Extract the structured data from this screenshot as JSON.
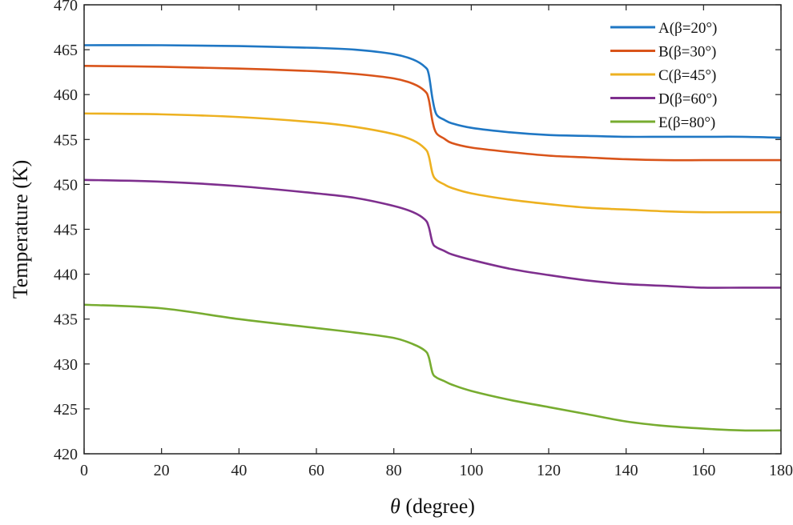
{
  "chart_data": {
    "type": "line",
    "xlabel_var": "θ",
    "xlabel_rest": " (degree)",
    "ylabel": "Temperature (K)",
    "xlim": [
      0,
      180
    ],
    "ylim": [
      420,
      470
    ],
    "xticks": [
      0,
      20,
      40,
      60,
      80,
      100,
      120,
      140,
      160,
      180
    ],
    "yticks": [
      420,
      425,
      430,
      435,
      440,
      445,
      450,
      455,
      460,
      465,
      470
    ],
    "grid": false,
    "legend_position": "top-right",
    "series": [
      {
        "name": "A(β=20°)",
        "color": "#1f77c4",
        "x": [
          0,
          20,
          40,
          60,
          70,
          80,
          85,
          88,
          89,
          90,
          91,
          93,
          95,
          100,
          110,
          120,
          130,
          140,
          150,
          160,
          170,
          180
        ],
        "y": [
          465.5,
          465.5,
          465.4,
          465.2,
          465.0,
          464.5,
          463.9,
          463.1,
          462.3,
          459.5,
          457.8,
          457.2,
          456.8,
          456.3,
          455.8,
          455.5,
          455.4,
          455.3,
          455.3,
          455.3,
          455.3,
          455.2
        ]
      },
      {
        "name": "B(β=30°)",
        "color": "#d9541a",
        "x": [
          0,
          20,
          40,
          60,
          70,
          80,
          85,
          88,
          89,
          90,
          91,
          93,
          95,
          100,
          110,
          120,
          130,
          140,
          150,
          160,
          170,
          180
        ],
        "y": [
          463.2,
          463.1,
          462.9,
          462.6,
          462.3,
          461.8,
          461.2,
          460.4,
          459.5,
          457.0,
          455.7,
          455.1,
          454.6,
          454.1,
          453.6,
          453.2,
          453.0,
          452.8,
          452.7,
          452.7,
          452.7,
          452.7
        ]
      },
      {
        "name": "C(β=45°)",
        "color": "#edb120",
        "x": [
          0,
          20,
          40,
          60,
          70,
          80,
          85,
          88,
          89,
          90,
          91,
          93,
          95,
          100,
          110,
          120,
          130,
          140,
          150,
          160,
          170,
          180
        ],
        "y": [
          457.9,
          457.8,
          457.5,
          456.9,
          456.4,
          455.6,
          454.9,
          454.0,
          453.2,
          451.2,
          450.5,
          450.0,
          449.6,
          449.0,
          448.3,
          447.8,
          447.4,
          447.2,
          447.0,
          446.9,
          446.9,
          446.9
        ]
      },
      {
        "name": "D(β=60°)",
        "color": "#7e2f8e",
        "x": [
          0,
          20,
          40,
          60,
          70,
          80,
          85,
          88,
          89,
          90,
          91,
          93,
          95,
          100,
          110,
          120,
          130,
          140,
          150,
          160,
          170,
          180
        ],
        "y": [
          450.5,
          450.3,
          449.8,
          449.0,
          448.5,
          447.6,
          446.9,
          446.1,
          445.3,
          443.5,
          443.0,
          442.6,
          442.2,
          441.6,
          440.6,
          439.9,
          439.3,
          438.9,
          438.7,
          438.5,
          438.5,
          438.5
        ]
      },
      {
        "name": "E(β=80°)",
        "color": "#77ac30",
        "x": [
          0,
          20,
          40,
          60,
          70,
          80,
          85,
          88,
          89,
          90,
          91,
          93,
          95,
          100,
          110,
          120,
          130,
          140,
          150,
          160,
          170,
          180
        ],
        "y": [
          436.6,
          436.2,
          435.0,
          434.0,
          433.5,
          432.9,
          432.2,
          431.5,
          430.8,
          429.0,
          428.5,
          428.1,
          427.7,
          427.0,
          426.0,
          425.2,
          424.4,
          423.6,
          423.1,
          422.8,
          422.6,
          422.6
        ]
      }
    ]
  }
}
